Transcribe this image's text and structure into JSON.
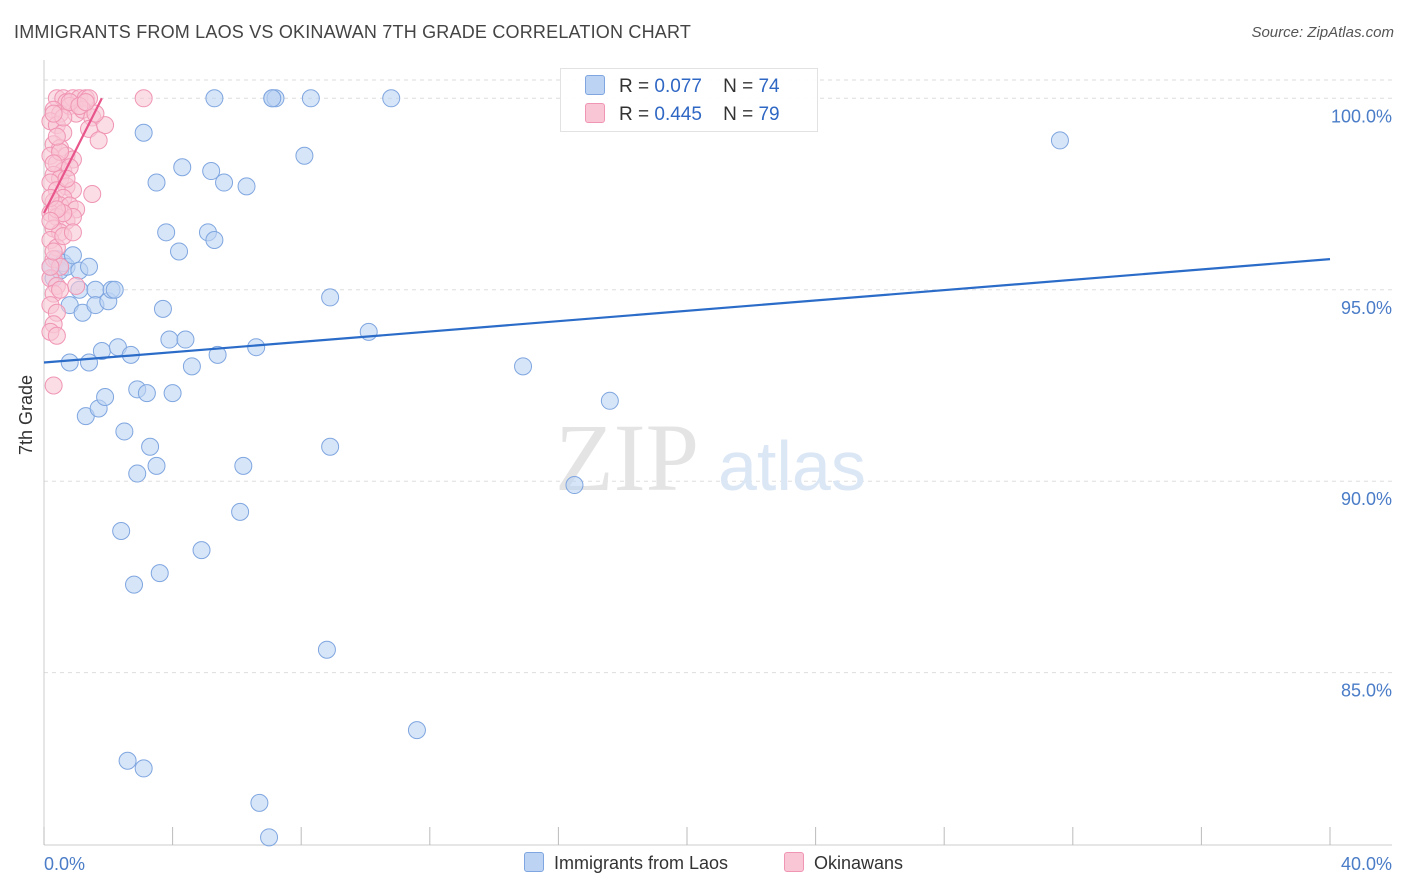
{
  "title": "IMMIGRANTS FROM LAOS VS OKINAWAN 7TH GRADE CORRELATION CHART",
  "source": "Source: ZipAtlas.com",
  "watermark": {
    "zip": "ZIP",
    "atlas": "atlas"
  },
  "colors": {
    "blue_fill": "#bcd3f4",
    "blue_stroke": "#7fa6e0",
    "blue_line": "#2b6cc9",
    "pink_fill": "#f9c6d5",
    "pink_stroke": "#f095b3",
    "pink_line": "#e8558a",
    "grid": "#dddddd",
    "tick_text": "#4a7cc7"
  },
  "legend": {
    "series1": {
      "r_label": "R =",
      "r_value": "0.077",
      "n_label": "N =",
      "n_value": "74"
    },
    "series2": {
      "r_label": "R =",
      "r_value": "0.445",
      "n_label": "N =",
      "n_value": "79"
    }
  },
  "bottom_legend": {
    "series1": "Immigrants from Laos",
    "series2": "Okinawans"
  },
  "chart_data": {
    "type": "scatter",
    "title": "IMMIGRANTS FROM LAOS VS OKINAWAN 7TH GRADE CORRELATION CHART",
    "xlabel": "",
    "ylabel": "7th Grade",
    "xlim": [
      0,
      40
    ],
    "ylim": [
      80.5,
      101
    ],
    "x_tick_labels": [
      "0.0%",
      "40.0%"
    ],
    "y_ticks": [
      85,
      90,
      95,
      100
    ],
    "y_tick_labels": [
      "85.0%",
      "90.0%",
      "95.0%",
      "100.0%"
    ],
    "grid": true,
    "series": [
      {
        "name": "Immigrants from Laos",
        "R": 0.077,
        "N": 74,
        "trend": {
          "x": [
            0,
            40
          ],
          "y": [
            93.1,
            95.8
          ]
        },
        "points": [
          [
            0.2,
            95.6
          ],
          [
            0.3,
            95.3
          ],
          [
            0.4,
            95.8
          ],
          [
            0.5,
            95.5
          ],
          [
            0.6,
            95.7
          ],
          [
            0.7,
            95.6
          ],
          [
            0.9,
            95.9
          ],
          [
            1.1,
            95.5
          ],
          [
            1.4,
            95.6
          ],
          [
            0.8,
            94.6
          ],
          [
            1.1,
            95.0
          ],
          [
            1.2,
            94.4
          ],
          [
            1.6,
            95.0
          ],
          [
            1.6,
            94.6
          ],
          [
            2.0,
            94.7
          ],
          [
            2.1,
            95.0
          ],
          [
            2.2,
            95.0
          ],
          [
            0.8,
            93.1
          ],
          [
            1.4,
            93.1
          ],
          [
            1.8,
            93.4
          ],
          [
            2.3,
            93.5
          ],
          [
            2.7,
            93.3
          ],
          [
            1.3,
            91.7
          ],
          [
            1.7,
            91.9
          ],
          [
            1.9,
            92.2
          ],
          [
            2.9,
            92.4
          ],
          [
            3.2,
            92.3
          ],
          [
            4.0,
            92.3
          ],
          [
            2.5,
            91.3
          ],
          [
            3.3,
            90.9
          ],
          [
            2.9,
            90.2
          ],
          [
            3.5,
            90.4
          ],
          [
            3.1,
            99.1
          ],
          [
            3.5,
            97.8
          ],
          [
            3.8,
            96.5
          ],
          [
            4.2,
            96.0
          ],
          [
            4.3,
            98.2
          ],
          [
            3.7,
            94.5
          ],
          [
            3.9,
            93.7
          ],
          [
            4.4,
            93.7
          ],
          [
            4.6,
            93.0
          ],
          [
            5.2,
            98.1
          ],
          [
            5.1,
            96.5
          ],
          [
            5.3,
            96.3
          ],
          [
            5.6,
            97.8
          ],
          [
            6.3,
            97.7
          ],
          [
            5.4,
            93.3
          ],
          [
            6.6,
            93.5
          ],
          [
            5.3,
            100.0
          ],
          [
            7.1,
            100.0
          ],
          [
            7.2,
            100.0
          ],
          [
            8.3,
            100.0
          ],
          [
            10.8,
            100.0
          ],
          [
            8.1,
            98.5
          ],
          [
            8.9,
            94.8
          ],
          [
            10.1,
            93.9
          ],
          [
            8.9,
            90.9
          ],
          [
            6.2,
            90.4
          ],
          [
            6.1,
            89.2
          ],
          [
            2.4,
            88.7
          ],
          [
            4.9,
            88.2
          ],
          [
            3.6,
            87.6
          ],
          [
            2.8,
            87.3
          ],
          [
            8.8,
            85.6
          ],
          [
            11.6,
            83.5
          ],
          [
            2.6,
            82.7
          ],
          [
            3.1,
            82.5
          ],
          [
            6.7,
            81.6
          ],
          [
            7.0,
            80.7
          ],
          [
            14.9,
            93.0
          ],
          [
            17.6,
            92.1
          ],
          [
            16.5,
            89.9
          ],
          [
            31.6,
            98.9
          ],
          [
            7.1,
            100.0
          ]
        ]
      },
      {
        "name": "Okinawans",
        "R": 0.445,
        "N": 79,
        "trend": {
          "x": [
            0,
            1.8
          ],
          "y": [
            97.0,
            100.0
          ]
        },
        "points": [
          [
            0.4,
            100.0
          ],
          [
            0.6,
            100.0
          ],
          [
            0.7,
            99.9
          ],
          [
            0.9,
            100.0
          ],
          [
            1.1,
            100.0
          ],
          [
            1.3,
            100.0
          ],
          [
            1.4,
            100.0
          ],
          [
            3.1,
            100.0
          ],
          [
            0.3,
            99.7
          ],
          [
            0.5,
            99.6
          ],
          [
            0.8,
            99.8
          ],
          [
            1.0,
            99.6
          ],
          [
            1.2,
            99.7
          ],
          [
            1.5,
            99.5
          ],
          [
            1.4,
            99.2
          ],
          [
            0.2,
            99.4
          ],
          [
            0.4,
            99.3
          ],
          [
            0.6,
            99.1
          ],
          [
            0.3,
            98.8
          ],
          [
            0.5,
            98.7
          ],
          [
            0.7,
            98.5
          ],
          [
            0.9,
            98.4
          ],
          [
            0.2,
            98.5
          ],
          [
            0.4,
            98.3
          ],
          [
            0.6,
            98.1
          ],
          [
            0.3,
            98.0
          ],
          [
            0.5,
            97.9
          ],
          [
            0.7,
            97.7
          ],
          [
            0.9,
            97.6
          ],
          [
            0.2,
            97.8
          ],
          [
            0.4,
            97.6
          ],
          [
            0.6,
            97.4
          ],
          [
            1.5,
            97.5
          ],
          [
            0.3,
            97.3
          ],
          [
            0.5,
            97.2
          ],
          [
            0.8,
            97.2
          ],
          [
            1.0,
            97.1
          ],
          [
            0.2,
            97.0
          ],
          [
            0.4,
            96.9
          ],
          [
            0.7,
            96.8
          ],
          [
            0.9,
            96.9
          ],
          [
            0.3,
            96.6
          ],
          [
            0.5,
            96.5
          ],
          [
            0.2,
            96.3
          ],
          [
            0.4,
            96.1
          ],
          [
            0.6,
            96.4
          ],
          [
            0.3,
            95.8
          ],
          [
            0.5,
            95.6
          ],
          [
            0.2,
            95.3
          ],
          [
            0.4,
            95.1
          ],
          [
            0.3,
            94.9
          ],
          [
            0.2,
            94.6
          ],
          [
            0.4,
            94.4
          ],
          [
            0.3,
            94.1
          ],
          [
            0.2,
            93.9
          ],
          [
            0.4,
            93.8
          ],
          [
            0.3,
            92.5
          ],
          [
            1.9,
            99.3
          ],
          [
            1.6,
            99.6
          ],
          [
            1.7,
            98.9
          ],
          [
            0.8,
            98.2
          ],
          [
            0.6,
            97.0
          ],
          [
            0.9,
            96.5
          ],
          [
            1.0,
            95.1
          ],
          [
            0.5,
            95.0
          ],
          [
            0.2,
            95.6
          ],
          [
            0.3,
            96.0
          ],
          [
            0.7,
            97.9
          ],
          [
            0.5,
            98.6
          ],
          [
            0.4,
            99.0
          ],
          [
            0.6,
            99.5
          ],
          [
            0.8,
            99.9
          ],
          [
            1.1,
            99.8
          ],
          [
            1.3,
            99.9
          ],
          [
            0.2,
            97.4
          ],
          [
            0.3,
            98.3
          ],
          [
            0.4,
            97.1
          ],
          [
            0.2,
            96.8
          ],
          [
            0.3,
            99.6
          ]
        ]
      }
    ]
  }
}
